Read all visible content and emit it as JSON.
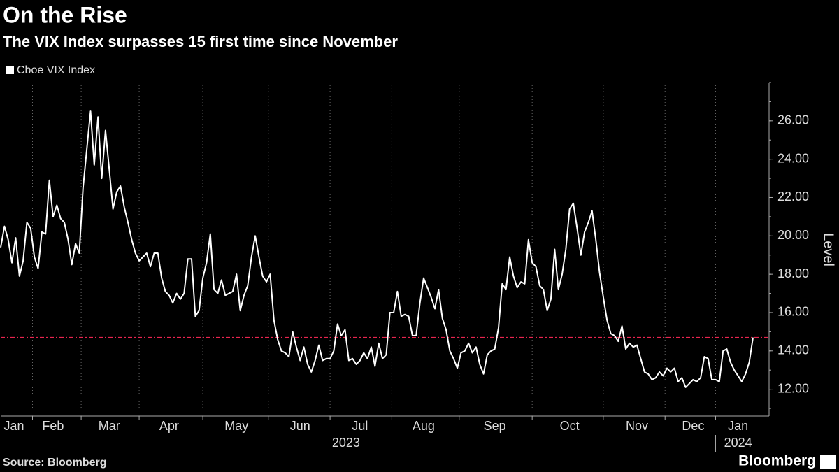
{
  "chart_data": {
    "type": "line",
    "title": "On the Rise",
    "subtitle": "The VIX Index surpasses 15 first time since November",
    "y_axis_label": "Level",
    "source": "Source: Bloomberg",
    "brand": "Bloomberg",
    "year_labels": [
      "2023",
      "2024"
    ],
    "categories": [
      null,
      null,
      null,
      "Jan",
      null,
      null,
      null,
      null,
      null,
      null,
      null,
      null,
      null,
      null,
      "Feb",
      null,
      null,
      null,
      null,
      null,
      null,
      null,
      null,
      null,
      null,
      null,
      null,
      null,
      null,
      "Mar",
      null,
      null,
      null,
      null,
      null,
      null,
      null,
      null,
      null,
      null,
      null,
      null,
      null,
      null,
      null,
      "Apr",
      null,
      null,
      null,
      null,
      null,
      null,
      null,
      null,
      null,
      null,
      null,
      null,
      null,
      null,
      null,
      null,
      null,
      "May",
      null,
      null,
      null,
      null,
      null,
      null,
      null,
      null,
      null,
      null,
      null,
      null,
      null,
      null,
      null,
      null,
      "Jun",
      null,
      null,
      null,
      null,
      null,
      null,
      null,
      null,
      null,
      null,
      null,
      null,
      null,
      null,
      null,
      "Jul",
      null,
      null,
      null,
      null,
      null,
      null,
      null,
      null,
      null,
      null,
      null,
      null,
      null,
      null,
      null,
      null,
      "Aug",
      null,
      null,
      null,
      null,
      null,
      null,
      null,
      null,
      null,
      null,
      null,
      null,
      null,
      null,
      null,
      null,
      null,
      null,
      "Sep",
      null,
      null,
      null,
      null,
      null,
      null,
      null,
      null,
      null,
      null,
      null,
      null,
      null,
      null,
      null,
      null,
      null,
      null,
      null,
      "Oct",
      null,
      null,
      null,
      null,
      null,
      null,
      null,
      null,
      null,
      null,
      null,
      null,
      null,
      null,
      null,
      null,
      null,
      "Nov",
      null,
      null,
      null,
      null,
      null,
      null,
      null,
      null,
      null,
      null,
      null,
      null,
      null,
      null,
      "Dec",
      null,
      null,
      null,
      null,
      null,
      null,
      null,
      null,
      null,
      null,
      null,
      "Jan",
      null,
      null,
      null,
      null
    ],
    "series": [
      {
        "name": "Cboe VIX Index",
        "color": "#ffffff",
        "values": [
          19.4,
          20.5,
          19.8,
          18.6,
          19.9,
          17.9,
          18.7,
          20.7,
          20.4,
          18.9,
          18.3,
          20.2,
          20.1,
          22.9,
          21.0,
          21.6,
          20.9,
          20.7,
          19.8,
          18.5,
          19.6,
          19.1,
          22.5,
          24.5,
          26.5,
          23.7,
          26.2,
          23.0,
          25.5,
          23.5,
          21.4,
          22.3,
          22.6,
          21.5,
          20.7,
          19.8,
          19.1,
          18.7,
          18.9,
          19.1,
          18.4,
          19.1,
          19.1,
          17.8,
          17.1,
          16.9,
          16.5,
          17.0,
          16.7,
          17.0,
          18.8,
          18.8,
          15.8,
          16.1,
          17.8,
          18.6,
          20.1,
          17.2,
          17.0,
          17.7,
          16.9,
          17.0,
          17.1,
          18.0,
          16.1,
          16.9,
          17.4,
          18.9,
          20.0,
          18.9,
          17.9,
          17.6,
          18.0,
          15.6,
          14.6,
          14.0,
          13.9,
          13.7,
          15.0,
          14.2,
          13.5,
          14.2,
          13.3,
          12.9,
          13.5,
          14.3,
          13.5,
          13.6,
          13.6,
          14.0,
          15.4,
          14.8,
          15.1,
          13.5,
          13.6,
          13.3,
          13.5,
          13.9,
          13.6,
          14.2,
          13.2,
          14.4,
          13.6,
          13.8,
          16.0,
          16.0,
          17.1,
          15.8,
          15.9,
          15.8,
          14.8,
          14.8,
          16.5,
          17.8,
          17.3,
          16.8,
          16.2,
          17.2,
          15.7,
          15.1,
          14.0,
          13.6,
          13.1,
          13.9,
          14.0,
          14.4,
          13.9,
          14.2,
          13.3,
          12.8,
          13.8,
          14.0,
          14.1,
          15.2,
          17.5,
          17.2,
          18.9,
          17.9,
          17.3,
          17.6,
          17.5,
          19.8,
          18.6,
          18.4,
          17.4,
          17.2,
          16.1,
          16.7,
          19.3,
          17.2,
          18.0,
          19.3,
          21.4,
          21.7,
          20.4,
          19.0,
          20.2,
          20.7,
          21.3,
          19.8,
          18.1,
          16.8,
          15.6,
          14.9,
          14.8,
          14.5,
          15.3,
          14.1,
          14.4,
          14.2,
          14.3,
          13.6,
          12.9,
          12.8,
          12.5,
          12.6,
          12.9,
          12.7,
          13.1,
          12.9,
          13.1,
          12.4,
          12.6,
          12.1,
          12.3,
          12.5,
          12.4,
          12.6,
          13.7,
          13.6,
          12.5,
          12.5,
          12.4,
          14.0,
          14.1,
          13.4,
          13.0,
          12.7,
          12.4,
          12.8,
          13.4,
          14.7
        ]
      }
    ],
    "threshold": {
      "value": 14.7,
      "color": "#e8254f"
    },
    "ylim": [
      10.6,
      28
    ],
    "yticks": [
      {
        "value": 12,
        "label": "12.00"
      },
      {
        "value": 14,
        "label": "14.00"
      },
      {
        "value": 16,
        "label": "16.00"
      },
      {
        "value": 18,
        "label": "18.00"
      },
      {
        "value": 20,
        "label": "20.00"
      },
      {
        "value": 22,
        "label": "22.00"
      },
      {
        "value": 24,
        "label": "24.00"
      },
      {
        "value": 26,
        "label": "26.00"
      }
    ],
    "grid": true,
    "legend": "top-left"
  }
}
